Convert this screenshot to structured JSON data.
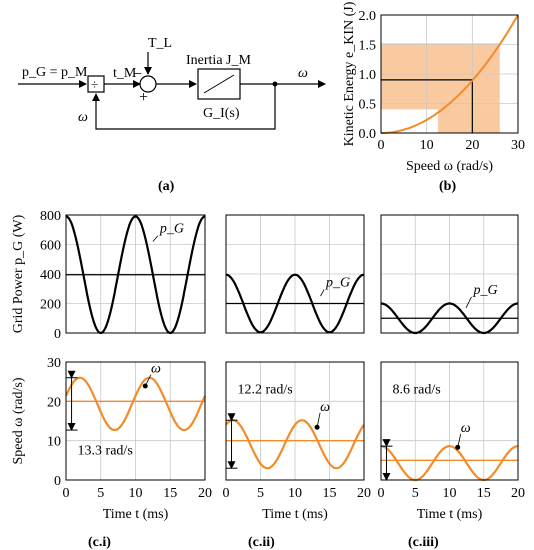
{
  "colors": {
    "orange": "#f28c28",
    "shade": "#f9c9a0",
    "black": "#000000",
    "grid": "#c8c8c8"
  },
  "block_diagram": {
    "input_label": "p_G = p_M",
    "tm_label": "t_M",
    "tl_label": "T_L",
    "minus_sign": "−",
    "plus_sign": "+",
    "inertia_label": "Inertia J_M",
    "transfer_label": "G_I(s)",
    "output_label": "ω",
    "feedback_label": "ω",
    "divider_symbol": "÷"
  },
  "panel_labels": {
    "a": "(a)",
    "b": "(b)",
    "ci": "(c.i)",
    "cii": "(c.ii)",
    "ciii": "(c.iii)"
  },
  "annotations": {
    "pg": "p_G",
    "omega": "ω",
    "c1_range": "13.3 rad/s",
    "c2_range": "12.2 rad/s",
    "c3_range": "8.6 rad/s"
  },
  "chart_data": [
    {
      "id": "b",
      "type": "line",
      "xlabel": "Speed ω (rad/s)",
      "ylabel": "Kinetic Energy e_KIN (J)",
      "xlim": [
        0,
        30
      ],
      "ylim": [
        0,
        2
      ],
      "xticks": [
        "0",
        "10",
        "20",
        "30"
      ],
      "yticks": [
        "0.0",
        "0.5",
        "1.0",
        "1.5",
        "2.0"
      ],
      "grid": true,
      "series": [
        {
          "x": [
            0,
            5,
            10,
            15,
            20,
            25,
            30
          ],
          "y": [
            0,
            0.056,
            0.222,
            0.5,
            0.889,
            1.389,
            2.0
          ]
        }
      ],
      "shaded_regions": [
        {
          "x": [
            0,
            26
          ],
          "y": [
            0.4,
            1.52
          ]
        },
        {
          "x": [
            12.5,
            26
          ],
          "y": [
            0,
            0.4
          ]
        }
      ],
      "marker_lines": {
        "x": 20,
        "y": 0.9
      }
    },
    {
      "id": "c_power",
      "type": "line",
      "ylabel": "Grid Power p_G (W)",
      "xlim": [
        0,
        20
      ],
      "ylim": [
        0,
        800
      ],
      "xticks": [
        "0",
        "5",
        "10",
        "15",
        "20"
      ],
      "yticks": [
        "0",
        "200",
        "400",
        "600",
        "800"
      ],
      "grid": true,
      "panels": [
        {
          "mean": 395,
          "amplitude": 395,
          "period_ms": 10,
          "min_at_ms": 5
        },
        {
          "mean": 200,
          "amplitude": 195,
          "period_ms": 10,
          "min_at_ms": 5
        },
        {
          "mean": 100,
          "amplitude": 100,
          "period_ms": 10,
          "min_at_ms": 5
        }
      ]
    },
    {
      "id": "c_speed",
      "type": "line",
      "xlabel": "Time t (ms)",
      "ylabel": "Speed ω (rad/s)",
      "xlim": [
        0,
        20
      ],
      "ylim": [
        0,
        30
      ],
      "xticks": [
        "0",
        "5",
        "10",
        "15",
        "20"
      ],
      "yticks": [
        "0",
        "10",
        "20",
        "30"
      ],
      "grid": true,
      "panels": [
        {
          "reference": 20,
          "max": 26.0,
          "min": 12.7,
          "range": 13.3,
          "min_at_ms": 7
        },
        {
          "reference": 10,
          "max": 15.2,
          "min": 3.0,
          "range": 12.2,
          "min_at_ms": 6
        },
        {
          "reference": 5,
          "max": 8.6,
          "min": 0.0,
          "range": 8.6,
          "min_at_ms": 5
        }
      ]
    }
  ]
}
